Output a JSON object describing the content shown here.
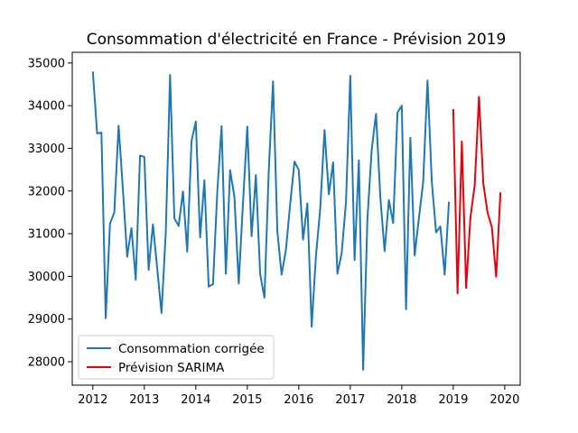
{
  "chart_data": {
    "type": "line",
    "title": "Consommation d'électricité en France - Prévision 2019",
    "xlabel": "",
    "ylabel": "",
    "xlim": [
      2011.6,
      2020.3
    ],
    "ylim": [
      27450,
      35250
    ],
    "x_ticks": [
      2012,
      2013,
      2014,
      2015,
      2016,
      2017,
      2018,
      2019,
      2020
    ],
    "y_ticks": [
      28000,
      29000,
      30000,
      31000,
      32000,
      33000,
      34000,
      35000
    ],
    "grid": false,
    "legend_position": "lower-left",
    "series": [
      {
        "name": "Consommation corrigée",
        "color": "#1f77b4",
        "x_start": 2012,
        "step": 0.08333,
        "values": [
          34800,
          33350,
          33370,
          29020,
          31230,
          31500,
          33530,
          32050,
          30460,
          31130,
          29920,
          32830,
          32800,
          30150,
          31220,
          30190,
          29140,
          31030,
          34720,
          31360,
          31180,
          31990,
          30580,
          33170,
          33630,
          30910,
          32250,
          29760,
          29820,
          31970,
          33520,
          30060,
          32490,
          31860,
          29830,
          31730,
          33510,
          30940,
          32370,
          30050,
          29500,
          32470,
          34570,
          31060,
          30040,
          30620,
          31700,
          32690,
          32490,
          30860,
          31710,
          28820,
          30480,
          31590,
          33430,
          31920,
          32670,
          30060,
          30550,
          31740,
          34700,
          30380,
          32720,
          27810,
          31350,
          32970,
          33810,
          31860,
          30590,
          31790,
          31250,
          33840,
          34000,
          29230,
          33250,
          30490,
          31360,
          32230,
          34590,
          32220,
          31030,
          31170,
          30040,
          31750
        ]
      },
      {
        "name": "Prévision SARIMA",
        "color": "#e8000b",
        "x_start": 2019,
        "step": 0.08333,
        "values": [
          33920,
          29600,
          33160,
          29730,
          31380,
          32140,
          34210,
          32180,
          31490,
          31150,
          29990,
          31970
        ]
      }
    ]
  }
}
